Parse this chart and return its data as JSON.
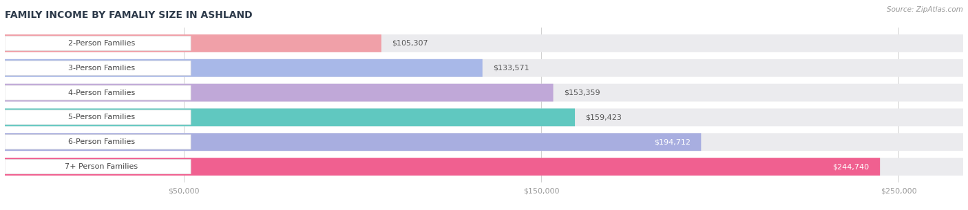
{
  "title": "FAMILY INCOME BY FAMALIY SIZE IN ASHLAND",
  "source": "Source: ZipAtlas.com",
  "categories": [
    "2-Person Families",
    "3-Person Families",
    "4-Person Families",
    "5-Person Families",
    "6-Person Families",
    "7+ Person Families"
  ],
  "values": [
    105307,
    133571,
    153359,
    159423,
    194712,
    244740
  ],
  "bar_colors": [
    "#f0a0a8",
    "#a8b8e8",
    "#c0a8d8",
    "#60c8c0",
    "#a8aee0",
    "#f06090"
  ],
  "label_colors": [
    "#555555",
    "#555555",
    "#555555",
    "#555555",
    "#555555",
    "#555555"
  ],
  "value_label_colors": [
    "#555555",
    "#555555",
    "#555555",
    "#555555",
    "#ffffff",
    "#ffffff"
  ],
  "value_labels": [
    "$105,307",
    "$133,571",
    "$153,359",
    "$159,423",
    "$194,712",
    "$244,740"
  ],
  "xlim_max": 268000,
  "title_color": "#2d3a4a",
  "source_color": "#999999",
  "background_color": "#ffffff",
  "bar_bg_color": "#ebebee"
}
